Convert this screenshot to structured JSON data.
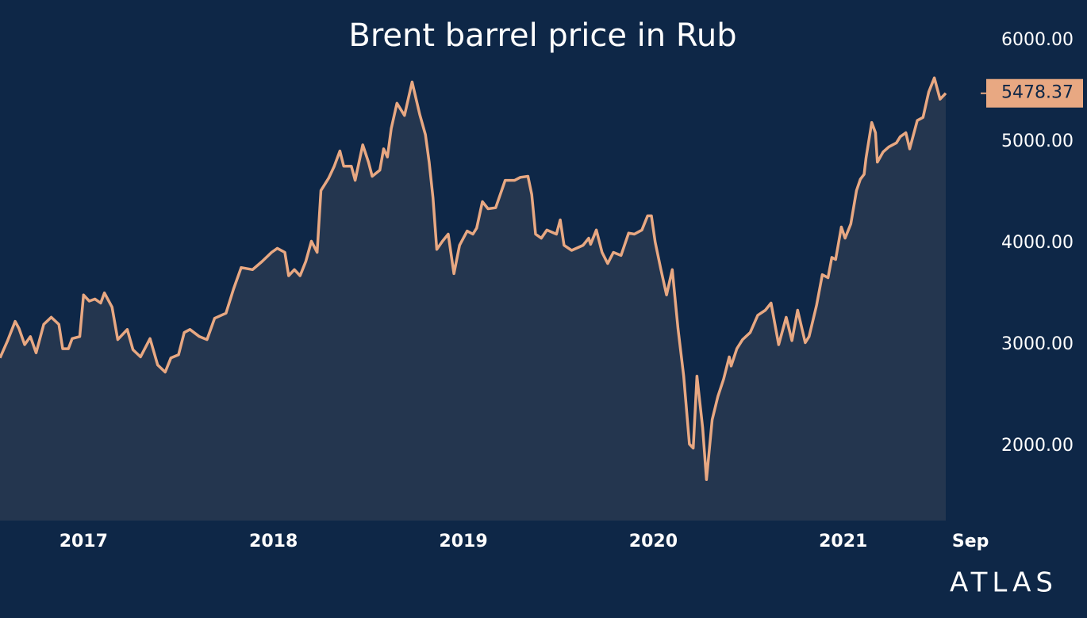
{
  "chart_data": {
    "type": "line",
    "title": "Brent barrel price in Rub",
    "brand": "ATLAS",
    "color": "#e8a882",
    "area": true,
    "area_color": "#24364f",
    "xlim": [
      2016.56,
      2021.54
    ],
    "xticks": [
      2017,
      2018,
      2019,
      2020,
      2021,
      {
        "value": 2021.67,
        "label": "Sep"
      }
    ],
    "ylim": [
      1266,
      6398
    ],
    "yticks": [
      {
        "value": 2000,
        "label": "2000.00"
      },
      {
        "value": 3000,
        "label": "3000.00"
      },
      {
        "value": 4000,
        "label": "4000.00"
      },
      {
        "value": 5000,
        "label": "5000.00"
      },
      {
        "value": 6000,
        "label": "6000.00"
      }
    ],
    "grid": false,
    "x": [
      2016.56,
      2016.6,
      2016.64,
      2016.66,
      2016.69,
      2016.72,
      2016.75,
      2016.79,
      2016.83,
      2016.87,
      2016.89,
      2016.92,
      2016.94,
      2016.98,
      2017.0,
      2017.03,
      2017.06,
      2017.09,
      2017.11,
      2017.15,
      2017.18,
      2017.23,
      2017.26,
      2017.3,
      2017.35,
      2017.39,
      2017.43,
      2017.46,
      2017.5,
      2017.53,
      2017.56,
      2017.61,
      2017.65,
      2017.69,
      2017.75,
      2017.79,
      2017.83,
      2017.89,
      2017.94,
      2017.99,
      2018.02,
      2018.06,
      2018.08,
      2018.11,
      2018.14,
      2018.17,
      2018.2,
      2018.23,
      2018.25,
      2018.29,
      2018.32,
      2018.35,
      2018.37,
      2018.41,
      2018.43,
      2018.47,
      2018.5,
      2018.52,
      2018.56,
      2018.58,
      2018.6,
      2018.62,
      2018.65,
      2018.69,
      2018.73,
      2018.77,
      2018.8,
      2018.82,
      2018.84,
      2018.86,
      2018.89,
      2018.92,
      2018.95,
      2018.98,
      2019.02,
      2019.05,
      2019.07,
      2019.1,
      2019.13,
      2019.17,
      2019.22,
      2019.27,
      2019.3,
      2019.34,
      2019.36,
      2019.38,
      2019.41,
      2019.44,
      2019.49,
      2019.51,
      2019.53,
      2019.57,
      2019.63,
      2019.66,
      2019.67,
      2019.7,
      2019.73,
      2019.76,
      2019.79,
      2019.83,
      2019.87,
      2019.9,
      2019.94,
      2019.97,
      2019.99,
      2020.01,
      2020.04,
      2020.07,
      2020.1,
      2020.13,
      2020.16,
      2020.19,
      2020.21,
      2020.23,
      2020.26,
      2020.28,
      2020.31,
      2020.34,
      2020.37,
      2020.4,
      2020.41,
      2020.44,
      2020.47,
      2020.51,
      2020.55,
      2020.59,
      2020.62,
      2020.66,
      2020.7,
      2020.73,
      2020.76,
      2020.8,
      2020.82,
      2020.86,
      2020.89,
      2020.92,
      2020.94,
      2020.96,
      2020.99,
      2021.01,
      2021.04,
      2021.07,
      2021.09,
      2021.11,
      2021.12,
      2021.15,
      2021.17,
      2021.18,
      2021.21,
      2021.24,
      2021.28,
      2021.3,
      2021.33,
      2021.35,
      2021.39,
      2021.42,
      2021.45,
      2021.48,
      2021.51,
      2021.54
    ],
    "values": [
      2870,
      3040,
      3230,
      3160,
      3000,
      3080,
      2920,
      3200,
      3270,
      3200,
      2960,
      2960,
      3060,
      3080,
      3490,
      3430,
      3450,
      3410,
      3510,
      3370,
      3050,
      3150,
      2950,
      2880,
      3060,
      2800,
      2730,
      2870,
      2900,
      3120,
      3150,
      3080,
      3050,
      3260,
      3310,
      3550,
      3760,
      3740,
      3820,
      3910,
      3950,
      3910,
      3680,
      3740,
      3680,
      3820,
      4020,
      3910,
      4520,
      4640,
      4760,
      4910,
      4760,
      4760,
      4620,
      4970,
      4800,
      4660,
      4720,
      4930,
      4850,
      5130,
      5380,
      5260,
      5590,
      5270,
      5070,
      4800,
      4450,
      3940,
      4020,
      4090,
      3700,
      3980,
      4120,
      4090,
      4150,
      4410,
      4340,
      4350,
      4620,
      4620,
      4650,
      4660,
      4480,
      4090,
      4050,
      4130,
      4090,
      4230,
      3980,
      3930,
      3980,
      4050,
      3990,
      4130,
      3910,
      3800,
      3910,
      3880,
      4100,
      4090,
      4130,
      4270,
      4270,
      4010,
      3740,
      3490,
      3740,
      3160,
      2690,
      2020,
      1980,
      2690,
      2180,
      1670,
      2260,
      2490,
      2660,
      2880,
      2790,
      2960,
      3050,
      3120,
      3290,
      3340,
      3410,
      3000,
      3270,
      3040,
      3340,
      3020,
      3080,
      3390,
      3690,
      3660,
      3860,
      3840,
      4160,
      4050,
      4190,
      4520,
      4630,
      4680,
      4840,
      5190,
      5090,
      4800,
      4900,
      4950,
      4990,
      5050,
      5090,
      4930,
      5210,
      5240,
      5490,
      5630,
      5420,
      5478.37
    ]
  }
}
